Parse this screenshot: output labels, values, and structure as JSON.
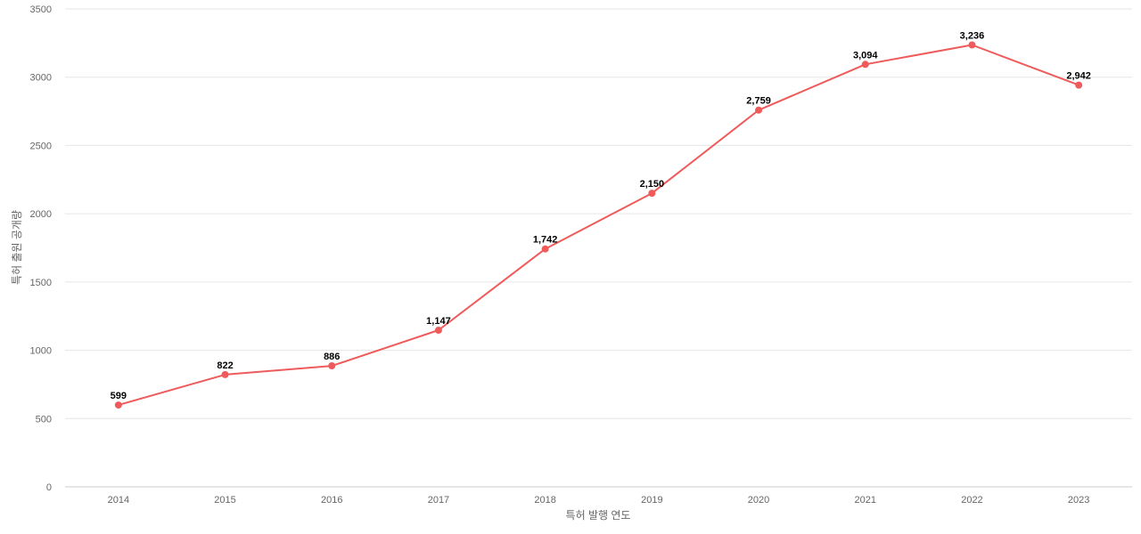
{
  "chart_data": {
    "type": "line",
    "title": "",
    "xlabel": "특허 발행 연도",
    "ylabel": "특허 출원 공개량",
    "ylim": [
      0,
      3500
    ],
    "yticks": [
      0,
      500,
      1000,
      1500,
      2000,
      2500,
      3000,
      3500
    ],
    "grid": true,
    "categories": [
      "2014",
      "2015",
      "2016",
      "2017",
      "2018",
      "2019",
      "2020",
      "2021",
      "2022",
      "2023"
    ],
    "series": [
      {
        "values": [
          599,
          822,
          886,
          1147,
          1742,
          2150,
          2759,
          3094,
          3236,
          2942
        ],
        "labels": [
          "599",
          "822",
          "886",
          "1,147",
          "1,742",
          "2,150",
          "2,759",
          "3,094",
          "3,236",
          "2,942"
        ],
        "color": "#ef5a5a"
      }
    ]
  }
}
